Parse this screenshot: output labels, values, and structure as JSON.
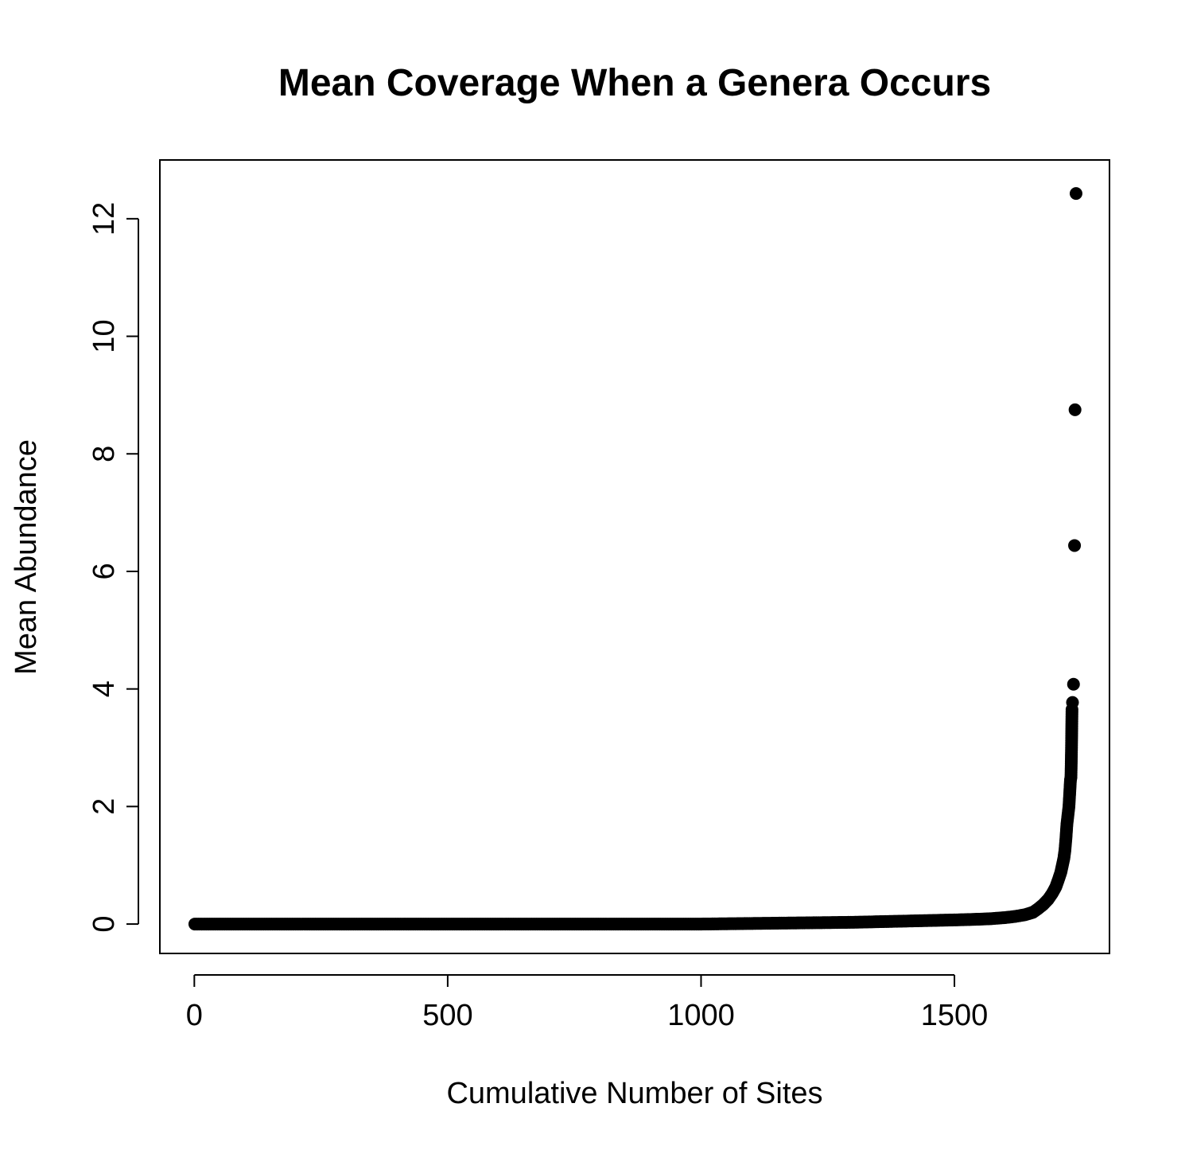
{
  "chart_data": {
    "type": "scatter",
    "title": "Mean Coverage When a Genera Occurs",
    "xlabel": "Cumulative Number of Sites",
    "ylabel": "Mean Abundance",
    "xlim": [
      -68,
      1806
    ],
    "ylim": [
      -0.5,
      13
    ],
    "x_ticks": [
      0,
      500,
      1000,
      1500
    ],
    "y_ticks": [
      0,
      2,
      4,
      6,
      8,
      10,
      12
    ],
    "n_points": 1740,
    "grid": false,
    "legend": "none",
    "point_color": "#000000",
    "points": [
      [
        1,
        0.0
      ],
      [
        100,
        0.0
      ],
      [
        200,
        0.0
      ],
      [
        300,
        0.0
      ],
      [
        400,
        0.0
      ],
      [
        500,
        0.0
      ],
      [
        600,
        0.0
      ],
      [
        700,
        0.0
      ],
      [
        800,
        0.0
      ],
      [
        900,
        0.0
      ],
      [
        1000,
        0.0
      ],
      [
        1050,
        0.005
      ],
      [
        1100,
        0.01
      ],
      [
        1150,
        0.015
      ],
      [
        1200,
        0.02
      ],
      [
        1250,
        0.025
      ],
      [
        1300,
        0.03
      ],
      [
        1350,
        0.04
      ],
      [
        1400,
        0.05
      ],
      [
        1450,
        0.06
      ],
      [
        1500,
        0.07
      ],
      [
        1540,
        0.08
      ],
      [
        1570,
        0.09
      ],
      [
        1600,
        0.11
      ],
      [
        1620,
        0.13
      ],
      [
        1640,
        0.16
      ],
      [
        1655,
        0.2
      ],
      [
        1665,
        0.26
      ],
      [
        1675,
        0.33
      ],
      [
        1685,
        0.42
      ],
      [
        1693,
        0.52
      ],
      [
        1700,
        0.63
      ],
      [
        1705,
        0.75
      ],
      [
        1710,
        0.88
      ],
      [
        1713,
        1.0
      ],
      [
        1716,
        1.12
      ],
      [
        1718,
        1.25
      ],
      [
        1720,
        1.45
      ],
      [
        1722,
        1.7
      ],
      [
        1724,
        1.85
      ],
      [
        1726,
        2.0
      ],
      [
        1727,
        2.15
      ],
      [
        1728,
        2.3
      ],
      [
        1729,
        2.45
      ],
      [
        1730,
        2.5
      ],
      [
        1731,
        2.96
      ],
      [
        1732,
        3.65
      ],
      [
        1733,
        3.77
      ],
      [
        1735,
        4.08
      ],
      [
        1737,
        6.44
      ],
      [
        1738,
        8.75
      ],
      [
        1740,
        12.43
      ]
    ]
  }
}
